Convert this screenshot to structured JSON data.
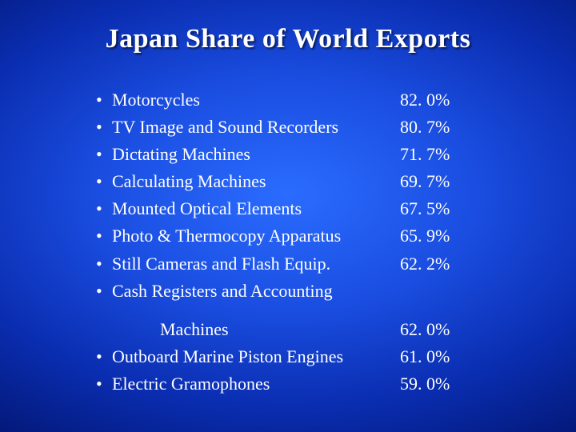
{
  "slide": {
    "title": "Japan Share of World Exports",
    "title_fontsize": 34,
    "title_color": "#ffffff",
    "body_fontsize": 22,
    "body_color": "#ffffff",
    "background_gradient": {
      "type": "radial",
      "inner": "#2a6cff",
      "mid": "#0a2db0",
      "outer": "#010a40"
    },
    "bullet_glyph": "•",
    "group1": [
      {
        "label": "Motorcycles",
        "value": "82. 0%"
      },
      {
        "label": "TV Image and Sound Recorders",
        "value": "80. 7%"
      },
      {
        "label": "Dictating Machines",
        "value": "71. 7%"
      },
      {
        "label": "Calculating Machines",
        "value": "69. 7%"
      },
      {
        "label": "Mounted Optical Elements",
        "value": "67. 5%"
      },
      {
        "label": "Photo & Thermocopy Apparatus",
        "value": "65. 9%"
      },
      {
        "label": "Still Cameras and Flash Equip.",
        "value": "62. 2%"
      },
      {
        "label": "Cash Registers and Accounting",
        "value": ""
      }
    ],
    "group2_cont": {
      "label": "Machines",
      "value": "62. 0%"
    },
    "group2": [
      {
        "label": "Outboard Marine Piston Engines",
        "value": "61. 0%"
      },
      {
        "label": "Electric Gramophones",
        "value": "59. 0%"
      }
    ]
  }
}
